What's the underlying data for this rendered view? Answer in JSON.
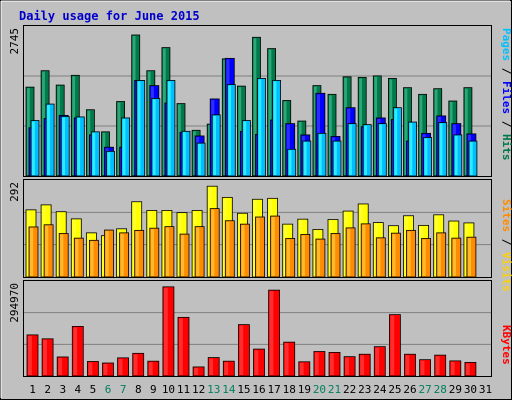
{
  "chart_data": [
    {
      "type": "bar",
      "title": "Daily usage for June 2015",
      "ylabel": "",
      "ymax_label": "2745",
      "ylim": [
        0,
        2920
      ],
      "categories": [
        "1",
        "2",
        "3",
        "4",
        "5",
        "6",
        "7",
        "8",
        "9",
        "10",
        "11",
        "12",
        "13",
        "14",
        "15",
        "16",
        "17",
        "18",
        "19",
        "20",
        "21",
        "22",
        "23",
        "24",
        "25",
        "26",
        "27",
        "28",
        "29",
        "30",
        "31"
      ],
      "weekend_days": [
        "6",
        "7",
        "13",
        "14",
        "20",
        "21",
        "27",
        "28"
      ],
      "series": [
        {
          "name": "Hits",
          "values": [
            1730,
            2050,
            1770,
            1960,
            1290,
            860,
            1450,
            2745,
            2050,
            2500,
            1410,
            890,
            1010,
            2280,
            1750,
            2700,
            2480,
            1470,
            1070,
            1760,
            1590,
            1930,
            1920,
            1950,
            1900,
            1720,
            1590,
            1700,
            1460,
            1720,
            0
          ]
        },
        {
          "name": "Files",
          "values": [
            940,
            1120,
            1180,
            1130,
            800,
            560,
            560,
            1860,
            1760,
            1420,
            850,
            780,
            1500,
            2290,
            870,
            810,
            1090,
            1020,
            800,
            1610,
            770,
            1330,
            960,
            1130,
            1100,
            680,
            830,
            1170,
            1020,
            820,
            0
          ]
        },
        {
          "name": "Pages",
          "values": [
            1080,
            1400,
            1160,
            1150,
            860,
            480,
            1130,
            1860,
            1510,
            1860,
            870,
            640,
            1190,
            1780,
            1080,
            1900,
            1860,
            520,
            680,
            830,
            680,
            1020,
            1000,
            1020,
            1330,
            1050,
            750,
            1040,
            800,
            680,
            0
          ]
        }
      ],
      "colors": {
        "Hits": "#007a4a",
        "Files": "#0000ff",
        "Pages": "#00bfff"
      }
    },
    {
      "type": "bar",
      "ymax_label": "292",
      "ylim": [
        0,
        312
      ],
      "series": [
        {
          "name": "Visits",
          "values": [
            216,
            232,
            210,
            187,
            142,
            133,
            155,
            242,
            214,
            214,
            207,
            214,
            292,
            256,
            205,
            250,
            253,
            170,
            186,
            153,
            185,
            212,
            235,
            175,
            165,
            197,
            166,
            200,
            180,
            174,
            0
          ]
        },
        {
          "name": "Sites",
          "values": [
            161,
            168,
            140,
            125,
            118,
            151,
            142,
            150,
            157,
            162,
            138,
            162,
            220,
            181,
            170,
            193,
            196,
            124,
            137,
            122,
            140,
            158,
            171,
            126,
            141,
            150,
            124,
            142,
            125,
            128,
            0
          ]
        }
      ],
      "colors": {
        "Visits": "#ffff00",
        "Sites": "#ff8c00"
      }
    },
    {
      "type": "bar",
      "ymax_label": "294970",
      "ylim": [
        0,
        314270
      ],
      "series": [
        {
          "name": "KBytes",
          "values": [
            136000,
            123000,
            63000,
            164000,
            48000,
            43000,
            60000,
            75000,
            49000,
            294970,
            194000,
            30000,
            61000,
            49000,
            170000,
            89000,
            284000,
            112000,
            47000,
            81000,
            78000,
            64000,
            72000,
            97000,
            203000,
            72000,
            54000,
            69000,
            50000,
            45000,
            0
          ]
        }
      ],
      "colors": {
        "KBytes": "#ff0000"
      }
    }
  ],
  "axis_label_colors": {
    "weekday": "#000000",
    "weekend": "#00805f"
  }
}
